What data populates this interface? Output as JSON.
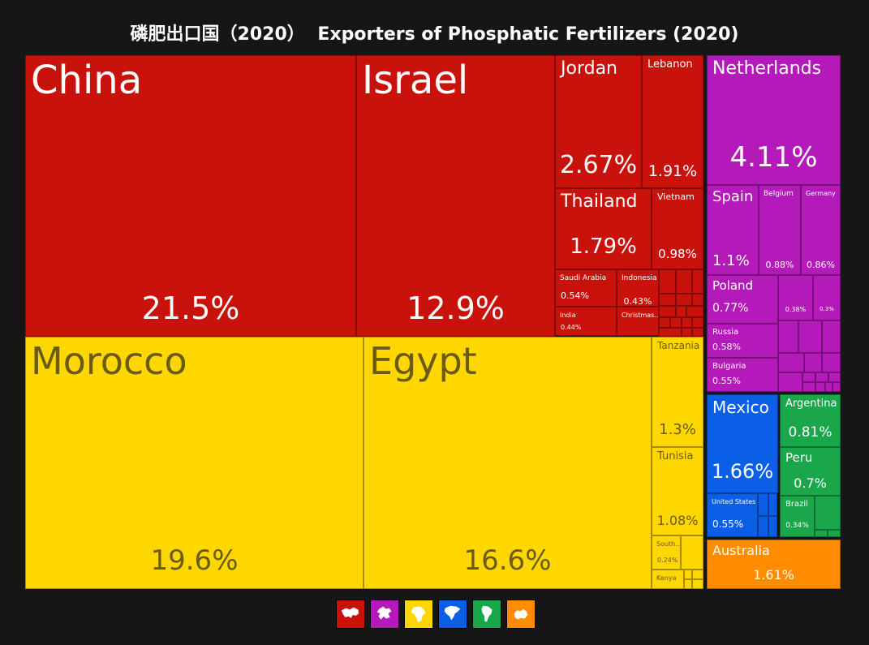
{
  "title_cn": "磷肥出口国（2020）",
  "title_en": "Exporters of Phosphatic Fertilizers (2020)",
  "legend": [
    {
      "region": "Asia",
      "color": "#c8120b",
      "icon": "asia-icon"
    },
    {
      "region": "Europe",
      "color": "#b41ab9",
      "icon": "europe-icon"
    },
    {
      "region": "Africa",
      "color": "#ffd700",
      "icon": "africa-icon"
    },
    {
      "region": "North America",
      "color": "#0a5fe6",
      "icon": "north-america-icon"
    },
    {
      "region": "South America",
      "color": "#1aa64a",
      "icon": "south-america-icon"
    },
    {
      "region": "Oceania",
      "color": "#ff8c00",
      "icon": "oceania-icon"
    }
  ],
  "chart_data": {
    "type": "treemap",
    "title": "磷肥出口国（2020） Exporters of Phosphatic Fertilizers (2020)",
    "unit": "% share of exports",
    "items": [
      {
        "name": "China",
        "value_label": "21.5%",
        "value": 21.5,
        "region": "Asia"
      },
      {
        "name": "Israel",
        "value_label": "12.9%",
        "value": 12.9,
        "region": "Asia"
      },
      {
        "name": "Jordan",
        "value_label": "2.67%",
        "value": 2.67,
        "region": "Asia"
      },
      {
        "name": "Lebanon",
        "value_label": "1.91%",
        "value": 1.91,
        "region": "Asia"
      },
      {
        "name": "Thailand",
        "value_label": "1.79%",
        "value": 1.79,
        "region": "Asia"
      },
      {
        "name": "Vietnam",
        "value_label": "0.98%",
        "value": 0.98,
        "region": "Asia"
      },
      {
        "name": "Saudi Arabia",
        "value_label": "0.54%",
        "value": 0.54,
        "region": "Asia"
      },
      {
        "name": "Indonesia",
        "value_label": "0.43%",
        "value": 0.43,
        "region": "Asia"
      },
      {
        "name": "India",
        "value_label": "0.44%",
        "value": 0.44,
        "region": "Asia"
      },
      {
        "name": "Christmas…",
        "value_label": "",
        "value": null,
        "region": "Asia"
      },
      {
        "name": "Morocco",
        "value_label": "19.6%",
        "value": 19.6,
        "region": "Africa"
      },
      {
        "name": "Egypt",
        "value_label": "16.6%",
        "value": 16.6,
        "region": "Africa"
      },
      {
        "name": "Tanzania",
        "value_label": "1.3%",
        "value": 1.3,
        "region": "Africa"
      },
      {
        "name": "Tunisia",
        "value_label": "1.08%",
        "value": 1.08,
        "region": "Africa"
      },
      {
        "name": "South…",
        "value_label": "0.24%",
        "value": 0.24,
        "region": "Africa"
      },
      {
        "name": "Kenya",
        "value_label": "",
        "value": null,
        "region": "Africa"
      },
      {
        "name": "Netherlands",
        "value_label": "4.11%",
        "value": 4.11,
        "region": "Europe"
      },
      {
        "name": "Spain",
        "value_label": "1.1%",
        "value": 1.1,
        "region": "Europe"
      },
      {
        "name": "Belgium",
        "value_label": "0.88%",
        "value": 0.88,
        "region": "Europe"
      },
      {
        "name": "Germany",
        "value_label": "0.86%",
        "value": 0.86,
        "region": "Europe"
      },
      {
        "name": "Poland",
        "value_label": "0.77%",
        "value": 0.77,
        "region": "Europe"
      },
      {
        "name": "",
        "value_label": "0.38%",
        "value": 0.38,
        "region": "Europe"
      },
      {
        "name": "",
        "value_label": "0.3%",
        "value": 0.3,
        "region": "Europe"
      },
      {
        "name": "Russia",
        "value_label": "0.58%",
        "value": 0.58,
        "region": "Europe"
      },
      {
        "name": "Bulgaria",
        "value_label": "0.55%",
        "value": 0.55,
        "region": "Europe"
      },
      {
        "name": "Mexico",
        "value_label": "1.66%",
        "value": 1.66,
        "region": "North America"
      },
      {
        "name": "United States",
        "value_label": "0.55%",
        "value": 0.55,
        "region": "North America"
      },
      {
        "name": "Argentina",
        "value_label": "0.81%",
        "value": 0.81,
        "region": "South America"
      },
      {
        "name": "Peru",
        "value_label": "0.7%",
        "value": 0.7,
        "region": "South America"
      },
      {
        "name": "Brazil",
        "value_label": "0.34%",
        "value": 0.34,
        "region": "South America"
      },
      {
        "name": "Australia",
        "value_label": "1.61%",
        "value": 1.61,
        "region": "Oceania"
      }
    ]
  }
}
